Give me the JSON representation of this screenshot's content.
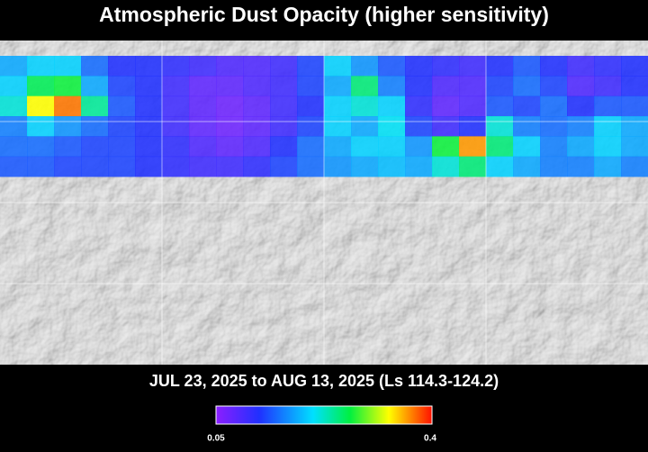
{
  "title": "Atmospheric Dust Opacity (higher sensitivity)",
  "subtitle": "JUL 23, 2025 to AUG 13, 2025 (Ls 114.3-124.2)",
  "colorbar": {
    "min": 0.05,
    "max": 0.4
  },
  "opacity_grid": [
    [
      0.18,
      0.2,
      0.2,
      0.15,
      0.12,
      0.12,
      0.11,
      0.1,
      0.09,
      0.09,
      0.1,
      0.13,
      0.2,
      0.17,
      0.14,
      0.12,
      0.11,
      0.1,
      0.12,
      0.14,
      0.12,
      0.1,
      0.11,
      0.12
    ],
    [
      0.2,
      0.26,
      0.27,
      0.18,
      0.13,
      0.12,
      0.1,
      0.08,
      0.08,
      0.09,
      0.1,
      0.13,
      0.18,
      0.25,
      0.16,
      0.12,
      0.09,
      0.09,
      0.13,
      0.15,
      0.13,
      0.09,
      0.1,
      0.12
    ],
    [
      0.22,
      0.33,
      0.37,
      0.24,
      0.14,
      0.12,
      0.1,
      0.08,
      0.07,
      0.08,
      0.1,
      0.12,
      0.2,
      0.22,
      0.2,
      0.11,
      0.08,
      0.09,
      0.14,
      0.13,
      0.15,
      0.12,
      0.14,
      0.14
    ],
    [
      0.16,
      0.2,
      0.17,
      0.15,
      0.13,
      0.12,
      0.1,
      0.08,
      0.07,
      0.08,
      0.1,
      0.13,
      0.2,
      0.18,
      0.21,
      0.13,
      0.1,
      0.12,
      0.22,
      0.16,
      0.15,
      0.16,
      0.2,
      0.18
    ],
    [
      0.15,
      0.15,
      0.14,
      0.13,
      0.13,
      0.12,
      0.11,
      0.09,
      0.08,
      0.09,
      0.12,
      0.15,
      0.18,
      0.2,
      0.2,
      0.17,
      0.27,
      0.36,
      0.25,
      0.2,
      0.16,
      0.18,
      0.2,
      0.18
    ],
    [
      0.14,
      0.14,
      0.13,
      0.13,
      0.13,
      0.12,
      0.11,
      0.1,
      0.1,
      0.11,
      0.13,
      0.15,
      0.17,
      0.18,
      0.19,
      0.18,
      0.22,
      0.25,
      0.2,
      0.18,
      0.16,
      0.16,
      0.18,
      0.16
    ]
  ]
}
